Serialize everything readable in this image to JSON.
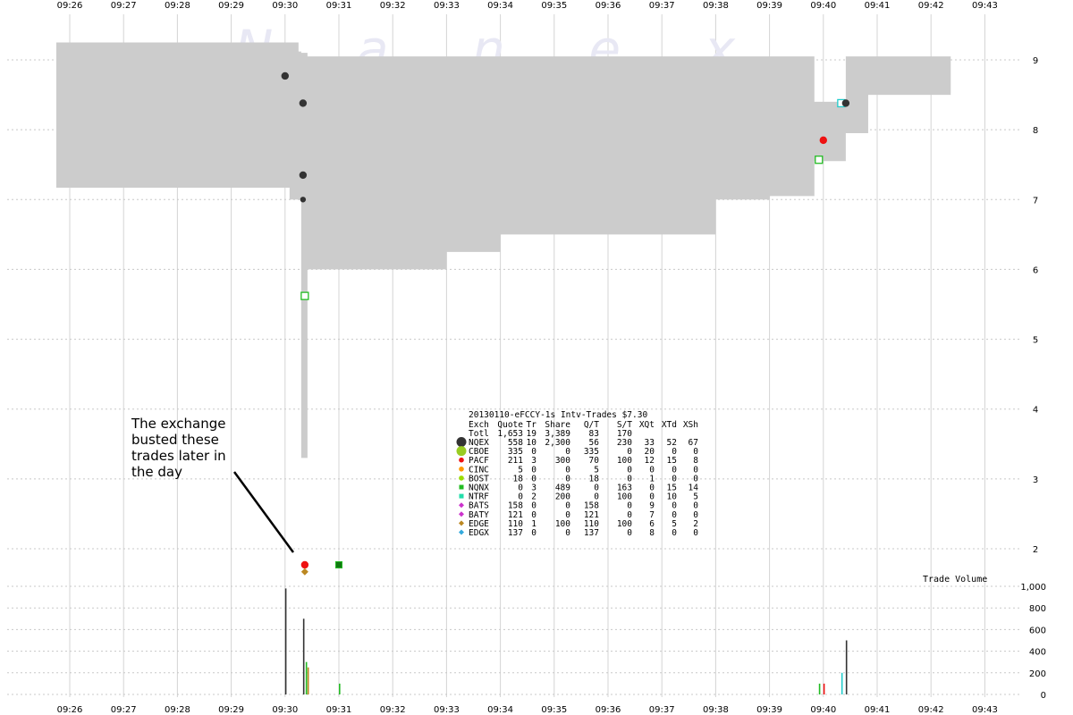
{
  "watermark": "N a n e x",
  "annotation": [
    "The exchange",
    "busted these",
    "trades later in",
    "the day"
  ],
  "volume_label": "Trade Volume",
  "chart_data": {
    "type": "line",
    "x_ticks": [
      "09:26",
      "09:27",
      "09:28",
      "09:29",
      "09:30",
      "09:31",
      "09:32",
      "09:33",
      "09:34",
      "09:35",
      "09:36",
      "09:37",
      "09:38",
      "09:39",
      "09:40",
      "09:41",
      "09:42",
      "09:43"
    ],
    "price_axis": {
      "ticks": [
        2,
        3,
        4,
        5,
        6,
        7,
        8,
        9
      ],
      "ylim": [
        1.5,
        9.4
      ]
    },
    "volume_axis": {
      "ticks": [
        0,
        200,
        400,
        600,
        800,
        "1,000"
      ],
      "ylim": [
        0,
        1000
      ]
    },
    "grid": true,
    "nbbo_spread": [
      {
        "t": "09:25:45",
        "bid": 7.17,
        "ask": 9.25
      },
      {
        "t": "09:30:05",
        "bid": 7.0,
        "ask": 9.25
      },
      {
        "t": "09:30:15",
        "bid": 7.0,
        "ask": 9.12
      },
      {
        "t": "09:30:18",
        "bid": 3.3,
        "ask": 9.1
      },
      {
        "t": "09:30:25",
        "bid": 6.0,
        "ask": 9.05
      },
      {
        "t": "09:31:00",
        "bid": 6.0,
        "ask": 9.05
      },
      {
        "t": "09:32:40",
        "bid": 6.0,
        "ask": 9.05
      },
      {
        "t": "09:33:00",
        "bid": 6.25,
        "ask": 9.05
      },
      {
        "t": "09:34:00",
        "bid": 6.5,
        "ask": 9.05
      },
      {
        "t": "09:37:20",
        "bid": 6.5,
        "ask": 9.05
      },
      {
        "t": "09:38:00",
        "bid": 7.0,
        "ask": 9.05
      },
      {
        "t": "09:39:00",
        "bid": 7.05,
        "ask": 9.05
      },
      {
        "t": "09:39:50",
        "bid": 7.55,
        "ask": 8.4
      },
      {
        "t": "09:40:25",
        "bid": 7.95,
        "ask": 9.05
      },
      {
        "t": "09:40:50",
        "bid": 8.5,
        "ask": 9.05
      },
      {
        "t": "09:42:20",
        "bid": 8.5,
        "ask": 9.05
      }
    ],
    "trades": [
      {
        "t": "09:30:00",
        "price": 8.77,
        "exch": "NQEX",
        "shape": "dot",
        "color": "#333333"
      },
      {
        "t": "09:30:20",
        "price": 8.38,
        "exch": "NQEX",
        "shape": "dot",
        "color": "#333333"
      },
      {
        "t": "09:30:20",
        "price": 7.35,
        "exch": "NQEX",
        "shape": "dot",
        "color": "#333333"
      },
      {
        "t": "09:30:20",
        "price": 7.0,
        "exch": "NQEX",
        "shape": "small-dot",
        "color": "#333333"
      },
      {
        "t": "09:30:22",
        "price": 5.62,
        "exch": "NQNX",
        "shape": "square",
        "color": "#22bb22"
      },
      {
        "t": "09:30:22",
        "price": 1.77,
        "exch": "PACF",
        "shape": "dot",
        "color": "#ee1111"
      },
      {
        "t": "09:30:22",
        "price": 1.67,
        "exch": "EDGE",
        "shape": "diamond",
        "color": "#bb8822"
      },
      {
        "t": "09:31:00",
        "price": 1.77,
        "exch": "NQNX",
        "shape": "filled-square",
        "color": "#117711"
      },
      {
        "t": "09:39:55",
        "price": 7.57,
        "exch": "NQNX",
        "shape": "square",
        "color": "#22bb22"
      },
      {
        "t": "09:40:00",
        "price": 7.85,
        "exch": "PACF",
        "shape": "dot",
        "color": "#ee1111"
      },
      {
        "t": "09:40:20",
        "price": 8.38,
        "exch": "NTRF",
        "shape": "square",
        "color": "#22cccc"
      },
      {
        "t": "09:40:25",
        "price": 8.38,
        "exch": "NQEX",
        "shape": "dot",
        "color": "#333333"
      }
    ],
    "volume_bars": [
      {
        "t": "09:30:00",
        "value": 980,
        "color": "#333333"
      },
      {
        "t": "09:30:20",
        "value": 700,
        "color": "#333333"
      },
      {
        "t": "09:30:23",
        "value": 300,
        "color": "#22bb22"
      },
      {
        "t": "09:30:25",
        "value": 250,
        "color": "#bb8822"
      },
      {
        "t": "09:31:00",
        "value": 100,
        "color": "#22bb22"
      },
      {
        "t": "09:39:55",
        "value": 100,
        "color": "#22bb22"
      },
      {
        "t": "09:40:00",
        "value": 100,
        "color": "#ee1111"
      },
      {
        "t": "09:40:20",
        "value": 200,
        "color": "#22cccc"
      },
      {
        "t": "09:40:25",
        "value": 500,
        "color": "#333333"
      }
    ],
    "table": {
      "title": "20130110-eFCCY-1s Intv-Trades $7.30",
      "header": [
        "Exch",
        "Quote",
        "Tr",
        "Share",
        "Q/T",
        "S/T",
        "XQt",
        "XTd",
        "XSh"
      ],
      "total": [
        "Totl",
        "1,653",
        "19",
        "3,389",
        "83",
        "170",
        "",
        "",
        ""
      ],
      "rows": [
        {
          "cells": [
            "NQEX",
            "558",
            "10",
            "2,300",
            "56",
            "230",
            "33",
            "52",
            "67"
          ],
          "color": "#333333",
          "marker": "big-dot"
        },
        {
          "cells": [
            "CBOE",
            "335",
            "0",
            "0",
            "335",
            "0",
            "20",
            "0",
            "0"
          ],
          "color": "#99cc22",
          "marker": "big-dot"
        },
        {
          "cells": [
            "PACF",
            "211",
            "3",
            "300",
            "70",
            "100",
            "12",
            "15",
            "8"
          ],
          "color": "#ee1111",
          "marker": "dot"
        },
        {
          "cells": [
            "CINC",
            "5",
            "0",
            "0",
            "5",
            "0",
            "0",
            "0",
            "0"
          ],
          "color": "#ff9900",
          "marker": "dot"
        },
        {
          "cells": [
            "BOST",
            "18",
            "0",
            "0",
            "18",
            "0",
            "1",
            "0",
            "0"
          ],
          "color": "#99dd00",
          "marker": "dot"
        },
        {
          "cells": [
            "NQNX",
            "0",
            "3",
            "489",
            "0",
            "163",
            "0",
            "15",
            "14"
          ],
          "color": "#22bb22",
          "marker": "square"
        },
        {
          "cells": [
            "NTRF",
            "0",
            "2",
            "200",
            "0",
            "100",
            "0",
            "10",
            "5"
          ],
          "color": "#22ddaa",
          "marker": "square"
        },
        {
          "cells": [
            "BATS",
            "158",
            "0",
            "0",
            "158",
            "0",
            "9",
            "0",
            "0"
          ],
          "color": "#cc33cc",
          "marker": "diamond"
        },
        {
          "cells": [
            "BATY",
            "121",
            "0",
            "0",
            "121",
            "0",
            "7",
            "0",
            "0"
          ],
          "color": "#cc33cc",
          "marker": "diamond"
        },
        {
          "cells": [
            "EDGE",
            "110",
            "1",
            "100",
            "110",
            "100",
            "6",
            "5",
            "2"
          ],
          "color": "#bb8822",
          "marker": "diamond"
        },
        {
          "cells": [
            "EDGX",
            "137",
            "0",
            "0",
            "137",
            "0",
            "8",
            "0",
            "0"
          ],
          "color": "#33aadd",
          "marker": "diamond"
        }
      ]
    }
  }
}
